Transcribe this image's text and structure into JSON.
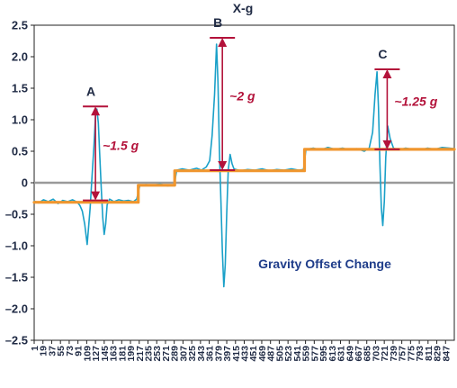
{
  "chart_data": {
    "type": "line",
    "title": "X-g",
    "xlabel": "",
    "ylabel": "",
    "ylim": [
      -2.5,
      2.5
    ],
    "y_ticks": [
      2.5,
      2.0,
      1.5,
      1.0,
      0.5,
      0,
      -0.5,
      -1.0,
      -1.5,
      -2.0,
      -2.5
    ],
    "y_tick_labels": [
      "2.5",
      "2.0",
      "1.5",
      "1.0",
      "0.5",
      "0",
      "–0.5",
      "–1.0",
      "–1.5",
      "–2.0",
      "–2.5"
    ],
    "xlim": [
      1,
      865
    ],
    "x_ticks": [
      1,
      19,
      37,
      55,
      73,
      91,
      109,
      127,
      145,
      163,
      181,
      199,
      217,
      235,
      253,
      271,
      289,
      307,
      325,
      343,
      361,
      379,
      397,
      415,
      433,
      451,
      469,
      487,
      505,
      523,
      541,
      559,
      577,
      595,
      613,
      631,
      649,
      667,
      685,
      703,
      721,
      739,
      757,
      775,
      793,
      811,
      829,
      847
    ],
    "grid": false,
    "legend": "none",
    "series": [
      {
        "role": "measured",
        "color": "#1aa0c8",
        "points": [
          [
            1,
            -0.29
          ],
          [
            10,
            -0.32
          ],
          [
            20,
            -0.27
          ],
          [
            30,
            -0.3
          ],
          [
            40,
            -0.26
          ],
          [
            50,
            -0.33
          ],
          [
            60,
            -0.28
          ],
          [
            70,
            -0.3
          ],
          [
            80,
            -0.27
          ],
          [
            90,
            -0.31
          ],
          [
            95,
            -0.36
          ],
          [
            100,
            -0.45
          ],
          [
            105,
            -0.66
          ],
          [
            110,
            -0.98
          ],
          [
            113,
            -0.7
          ],
          [
            116,
            -0.4
          ],
          [
            120,
            0.1
          ],
          [
            124,
            0.6
          ],
          [
            127,
            1.05
          ],
          [
            130,
            1.17
          ],
          [
            133,
            0.95
          ],
          [
            136,
            0.4
          ],
          [
            139,
            -0.1
          ],
          [
            142,
            -0.55
          ],
          [
            145,
            -0.82
          ],
          [
            148,
            -0.65
          ],
          [
            151,
            -0.35
          ],
          [
            156,
            -0.26
          ],
          [
            165,
            -0.3
          ],
          [
            175,
            -0.27
          ],
          [
            185,
            -0.29
          ],
          [
            195,
            -0.28
          ],
          [
            205,
            -0.3
          ],
          [
            212,
            -0.26
          ],
          [
            218,
            -0.05
          ],
          [
            230,
            -0.03
          ],
          [
            245,
            -0.04
          ],
          [
            260,
            -0.02
          ],
          [
            275,
            -0.05
          ],
          [
            289,
            -0.04
          ],
          [
            294,
            0.2
          ],
          [
            305,
            0.22
          ],
          [
            320,
            0.2
          ],
          [
            335,
            0.23
          ],
          [
            345,
            0.2
          ],
          [
            355,
            0.25
          ],
          [
            362,
            0.35
          ],
          [
            367,
            0.75
          ],
          [
            372,
            1.4
          ],
          [
            376,
            2.2
          ],
          [
            379,
            1.6
          ],
          [
            382,
            0.5
          ],
          [
            385,
            -0.3
          ],
          [
            388,
            -1.1
          ],
          [
            391,
            -1.65
          ],
          [
            394,
            -1.3
          ],
          [
            397,
            -0.5
          ],
          [
            400,
            0.2
          ],
          [
            404,
            0.45
          ],
          [
            408,
            0.3
          ],
          [
            412,
            0.22
          ],
          [
            425,
            0.19
          ],
          [
            440,
            0.21
          ],
          [
            455,
            0.2
          ],
          [
            470,
            0.22
          ],
          [
            485,
            0.19
          ],
          [
            500,
            0.21
          ],
          [
            515,
            0.2
          ],
          [
            530,
            0.22
          ],
          [
            545,
            0.2
          ],
          [
            555,
            0.21
          ],
          [
            560,
            0.53
          ],
          [
            575,
            0.55
          ],
          [
            590,
            0.52
          ],
          [
            605,
            0.56
          ],
          [
            620,
            0.53
          ],
          [
            635,
            0.55
          ],
          [
            650,
            0.52
          ],
          [
            665,
            0.54
          ],
          [
            680,
            0.5
          ],
          [
            690,
            0.55
          ],
          [
            697,
            0.8
          ],
          [
            702,
            1.4
          ],
          [
            706,
            1.76
          ],
          [
            709,
            1.2
          ],
          [
            712,
            0.3
          ],
          [
            715,
            -0.4
          ],
          [
            718,
            -0.68
          ],
          [
            721,
            -0.3
          ],
          [
            724,
            0.4
          ],
          [
            728,
            0.9
          ],
          [
            733,
            0.7
          ],
          [
            740,
            0.55
          ],
          [
            750,
            0.52
          ],
          [
            765,
            0.55
          ],
          [
            780,
            0.53
          ],
          [
            795,
            0.52
          ],
          [
            810,
            0.55
          ],
          [
            825,
            0.53
          ],
          [
            840,
            0.56
          ],
          [
            855,
            0.55
          ],
          [
            865,
            0.54
          ]
        ]
      },
      {
        "role": "gravity offset",
        "color": "#f0962e",
        "points": [
          [
            1,
            -0.31
          ],
          [
            215,
            -0.31
          ],
          [
            215,
            -0.04
          ],
          [
            290,
            -0.04
          ],
          [
            290,
            0.19
          ],
          [
            557,
            0.19
          ],
          [
            557,
            0.53
          ],
          [
            865,
            0.53
          ]
        ]
      }
    ],
    "annotations": [
      {
        "letter": "A",
        "value_label": "~1.5 g",
        "x": 127,
        "y_top": 1.21,
        "y_bottom": -0.28
      },
      {
        "letter": "B",
        "value_label": "~2 g",
        "x": 388,
        "y_top": 2.3,
        "y_bottom": 0.2
      },
      {
        "letter": "C",
        "value_label": "~1.25 g",
        "x": 727,
        "y_top": 1.8,
        "y_bottom": 0.53
      }
    ],
    "note": "Gravity Offset Change"
  }
}
